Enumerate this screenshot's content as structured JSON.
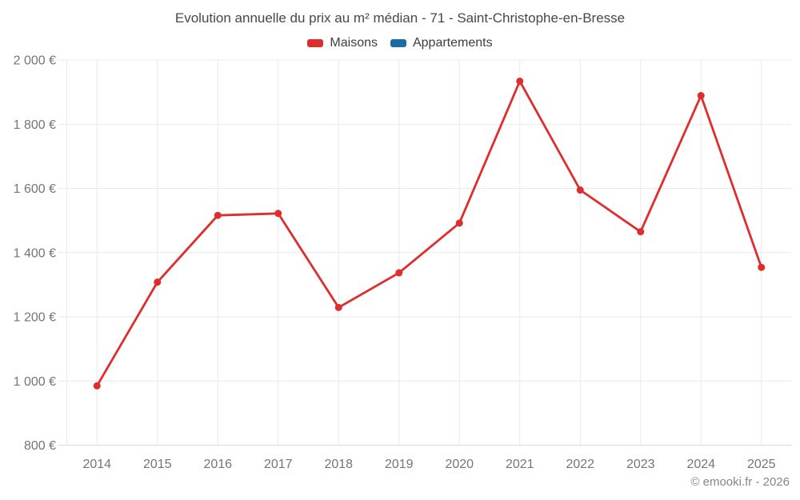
{
  "header": {
    "title": "Evolution annuelle du prix au m² médian - 71 - Saint-Christophe-en-Bresse"
  },
  "legend": {
    "items": [
      {
        "label": "Maisons",
        "color": "#df2c2c"
      },
      {
        "label": "Appartements",
        "color": "#1a6da3"
      }
    ]
  },
  "footer": {
    "credit": "© emooki.fr - 2026"
  },
  "chart_data": {
    "type": "line",
    "title": "Evolution annuelle du prix au m² médian - 71 - Saint-Christophe-en-Bresse",
    "categories": [
      "2014",
      "2015",
      "2016",
      "2017",
      "2018",
      "2019",
      "2020",
      "2021",
      "2022",
      "2023",
      "2024",
      "2025"
    ],
    "series": [
      {
        "name": "Maisons",
        "color": "#df2c2c",
        "values": [
          985,
          1308,
          1516,
          1522,
          1229,
          1337,
          1492,
          1934,
          1595,
          1465,
          1889,
          1354
        ]
      },
      {
        "name": "Appartements",
        "color": "#1a6da3",
        "values": []
      }
    ],
    "xlabel": "",
    "ylabel": "",
    "ylim": [
      800,
      2000
    ],
    "y_ticks": [
      {
        "value": 800,
        "label": "800 €"
      },
      {
        "value": 1000,
        "label": "1 000 €"
      },
      {
        "value": 1200,
        "label": "1 200 €"
      },
      {
        "value": 1400,
        "label": "1 400 €"
      },
      {
        "value": 1600,
        "label": "1 600 €"
      },
      {
        "value": 1800,
        "label": "1 800 €"
      },
      {
        "value": 2000,
        "label": "2 000 €"
      }
    ],
    "grid": true,
    "legend_position": "top",
    "styles": {
      "grid_color": "#e9e9e9",
      "axis_color": "#d9d9d9",
      "tick_label_color": "#757575",
      "marker_radius": 4.5,
      "line_width": 2.8
    }
  }
}
